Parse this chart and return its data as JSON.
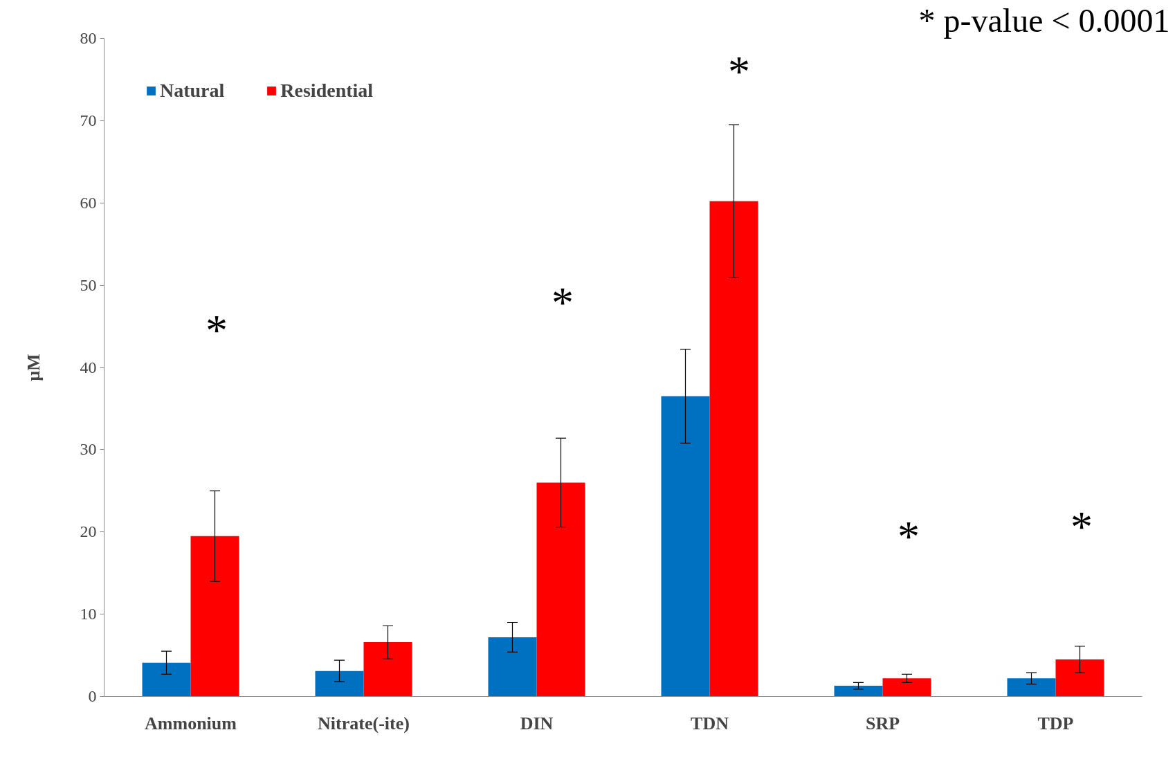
{
  "chart_data": {
    "type": "bar",
    "ylabel": "µM",
    "categories": [
      "Ammonium",
      "Nitrate(-ite)",
      "DIN",
      "TDN",
      "SRP",
      "TDP"
    ],
    "series": [
      {
        "name": "Natural",
        "color": "#0070c0",
        "values": [
          4.1,
          3.1,
          7.2,
          36.5,
          1.3,
          2.2
        ],
        "errors": [
          1.4,
          1.3,
          1.8,
          5.7,
          0.4,
          0.7
        ]
      },
      {
        "name": "Residential",
        "color": "#ff0000",
        "values": [
          19.5,
          6.6,
          26.0,
          60.2,
          2.2,
          4.5
        ],
        "errors": [
          5.5,
          2.0,
          5.4,
          9.3,
          0.5,
          1.6
        ]
      }
    ],
    "ylim": [
      0,
      80
    ],
    "yticks": [
      0,
      10,
      20,
      30,
      40,
      50,
      60,
      70,
      80
    ],
    "grid": false,
    "legend": "top left",
    "annotations": [
      "* p-value < 0.0001",
      "*",
      "*",
      "*",
      "*",
      "*"
    ]
  }
}
